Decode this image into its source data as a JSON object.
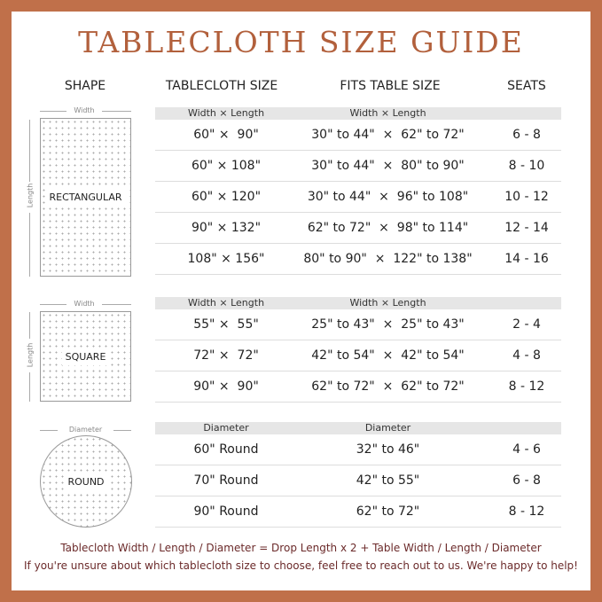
{
  "title": "TABLECLOTH  SIZE  GUIDE",
  "headers": {
    "shape": "SHAPE",
    "size": "TABLECLOTH SIZE",
    "fits": "FITS TABLE SIZE",
    "seats": "SEATS"
  },
  "colors": {
    "border": "#c0704a",
    "title": "#b2603c",
    "footer": "#6b2a2a"
  },
  "sections": [
    {
      "shape": "RECTANGULAR",
      "dim1": "Width",
      "dim2": "Length",
      "sub1": "Width × Length",
      "sub2": "Width × Length",
      "rows": [
        [
          "60\" ×  90\"",
          "30\" to 44\"  ×  62\" to 72\"",
          "6 - 8"
        ],
        [
          "60\" × 108\"",
          "30\" to 44\"  ×  80\" to 90\"",
          "8 - 10"
        ],
        [
          "60\" × 120\"",
          "30\" to 44\"  ×  96\" to 108\"",
          "10 - 12"
        ],
        [
          "90\" × 132\"",
          "62\" to 72\"  ×  98\" to 114\"",
          "12 - 14"
        ],
        [
          "108\" × 156\"",
          "80\" to 90\"  ×  122\" to 138\"",
          "14 - 16"
        ]
      ]
    },
    {
      "shape": "SQUARE",
      "dim1": "Width",
      "dim2": "Length",
      "sub1": "Width × Length",
      "sub2": "Width × Length",
      "rows": [
        [
          "55\" ×  55\"",
          "25\" to 43\"  ×  25\" to 43\"",
          "2 - 4"
        ],
        [
          "72\" ×  72\"",
          "42\" to 54\"  ×  42\" to 54\"",
          "4 - 8"
        ],
        [
          "90\" ×  90\"",
          "62\" to 72\"  ×  62\" to 72\"",
          "8 - 12"
        ]
      ]
    },
    {
      "shape": "ROUND",
      "dim1": "Diameter",
      "sub1": "Diameter",
      "sub2": "Diameter",
      "rows": [
        [
          "60\" Round",
          "32\" to 46\"",
          "4 - 6"
        ],
        [
          "70\" Round",
          "42\" to 55\"",
          "6 - 8"
        ],
        [
          "90\" Round",
          "62\" to 72\"",
          "8 - 12"
        ]
      ]
    }
  ],
  "footer": {
    "formula": "Tablecloth  Width / Length / Diameter = Drop Length x 2 + Table Width / Length / Diameter",
    "help": "If you're unsure about which tablecloth size to choose, feel free to reach out to us. We're happy to help!"
  }
}
